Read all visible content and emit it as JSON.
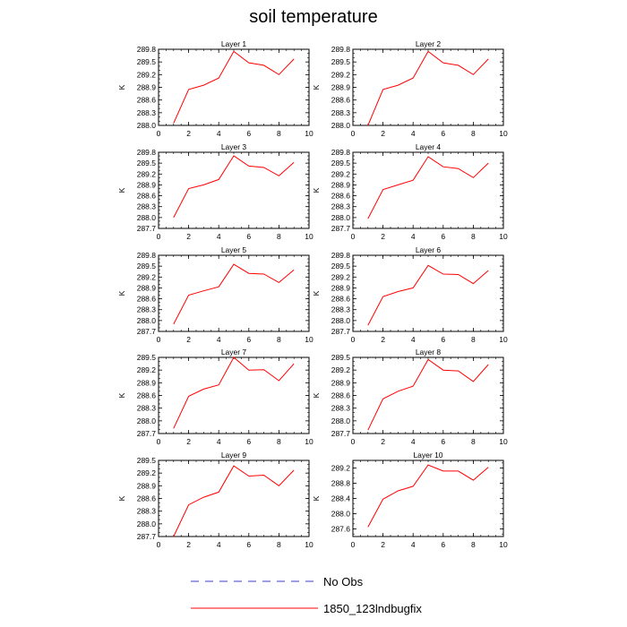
{
  "title": "soil temperature",
  "legend": {
    "placement": "bottom-center",
    "entries": [
      {
        "label": "No Obs",
        "color": "#3b3bd6",
        "style": "dashed"
      },
      {
        "label": "1850_123lndbugfix",
        "color": "#ff0000",
        "style": "solid"
      }
    ]
  },
  "chart_data": [
    {
      "type": "line",
      "title": "Layer 1",
      "ylabel": "K",
      "xlim": [
        0,
        10
      ],
      "xticks": [
        0,
        2,
        4,
        6,
        8,
        10
      ],
      "ylim": [
        288.0,
        289.8
      ],
      "yticks": [
        288.0,
        288.3,
        288.6,
        288.9,
        289.2,
        289.5,
        289.8
      ],
      "series": [
        {
          "color": "#ff0000",
          "x": [
            1,
            2,
            3,
            4,
            5,
            6,
            7,
            8,
            9
          ],
          "y": [
            288.05,
            288.85,
            288.95,
            289.12,
            289.75,
            289.48,
            289.42,
            289.2,
            289.57
          ]
        }
      ]
    },
    {
      "type": "line",
      "title": "Layer 2",
      "ylabel": "K",
      "xlim": [
        0,
        10
      ],
      "xticks": [
        0,
        2,
        4,
        6,
        8,
        10
      ],
      "ylim": [
        288.0,
        289.8
      ],
      "yticks": [
        288.0,
        288.3,
        288.6,
        288.9,
        289.2,
        289.5,
        289.8
      ],
      "series": [
        {
          "color": "#ff0000",
          "x": [
            1,
            2,
            3,
            4,
            5,
            6,
            7,
            8,
            9
          ],
          "y": [
            288.0,
            288.85,
            288.95,
            289.12,
            289.75,
            289.48,
            289.42,
            289.2,
            289.57
          ]
        }
      ]
    },
    {
      "type": "line",
      "title": "Layer 3",
      "ylabel": "K",
      "xlim": [
        0,
        10
      ],
      "xticks": [
        0,
        2,
        4,
        6,
        8,
        10
      ],
      "ylim": [
        287.7,
        289.8
      ],
      "yticks": [
        287.7,
        288.0,
        288.3,
        288.6,
        288.9,
        289.2,
        289.5,
        289.8
      ],
      "series": [
        {
          "color": "#ff0000",
          "x": [
            1,
            2,
            3,
            4,
            5,
            6,
            7,
            8,
            9
          ],
          "y": [
            288.0,
            288.8,
            288.9,
            289.05,
            289.7,
            289.42,
            289.38,
            289.15,
            289.52
          ]
        }
      ]
    },
    {
      "type": "line",
      "title": "Layer 4",
      "ylabel": "K",
      "xlim": [
        0,
        10
      ],
      "xticks": [
        0,
        2,
        4,
        6,
        8,
        10
      ],
      "ylim": [
        287.7,
        289.8
      ],
      "yticks": [
        287.7,
        288.0,
        288.3,
        288.6,
        288.9,
        289.2,
        289.5,
        289.8
      ],
      "series": [
        {
          "color": "#ff0000",
          "x": [
            1,
            2,
            3,
            4,
            5,
            6,
            7,
            8,
            9
          ],
          "y": [
            287.97,
            288.77,
            288.9,
            289.03,
            289.68,
            289.4,
            289.35,
            289.1,
            289.5
          ]
        }
      ]
    },
    {
      "type": "line",
      "title": "Layer 5",
      "ylabel": "K",
      "xlim": [
        0,
        10
      ],
      "xticks": [
        0,
        2,
        4,
        6,
        8,
        10
      ],
      "ylim": [
        287.7,
        289.8
      ],
      "yticks": [
        287.7,
        288.0,
        288.3,
        288.6,
        288.9,
        289.2,
        289.5,
        289.8
      ],
      "series": [
        {
          "color": "#ff0000",
          "x": [
            1,
            2,
            3,
            4,
            5,
            6,
            7,
            8,
            9
          ],
          "y": [
            287.9,
            288.7,
            288.82,
            288.93,
            289.55,
            289.3,
            289.28,
            289.05,
            289.4
          ]
        }
      ]
    },
    {
      "type": "line",
      "title": "Layer 6",
      "ylabel": "K",
      "xlim": [
        0,
        10
      ],
      "xticks": [
        0,
        2,
        4,
        6,
        8,
        10
      ],
      "ylim": [
        287.7,
        289.8
      ],
      "yticks": [
        287.7,
        288.0,
        288.3,
        288.6,
        288.9,
        289.2,
        289.5,
        289.8
      ],
      "series": [
        {
          "color": "#ff0000",
          "x": [
            1,
            2,
            3,
            4,
            5,
            6,
            7,
            8,
            9
          ],
          "y": [
            287.87,
            288.66,
            288.8,
            288.9,
            289.52,
            289.28,
            289.27,
            289.02,
            289.38
          ]
        }
      ]
    },
    {
      "type": "line",
      "title": "Layer 7",
      "ylabel": "K",
      "xlim": [
        0,
        10
      ],
      "xticks": [
        0,
        2,
        4,
        6,
        8,
        10
      ],
      "ylim": [
        287.7,
        289.5
      ],
      "yticks": [
        287.7,
        288.0,
        288.3,
        288.6,
        288.9,
        289.2,
        289.5
      ],
      "series": [
        {
          "color": "#ff0000",
          "x": [
            1,
            2,
            3,
            4,
            5,
            6,
            7,
            8,
            9
          ],
          "y": [
            287.82,
            288.58,
            288.75,
            288.85,
            289.5,
            289.2,
            289.21,
            288.95,
            289.35
          ]
        }
      ]
    },
    {
      "type": "line",
      "title": "Layer 8",
      "ylabel": "K",
      "xlim": [
        0,
        10
      ],
      "xticks": [
        0,
        2,
        4,
        6,
        8,
        10
      ],
      "ylim": [
        287.7,
        289.5
      ],
      "yticks": [
        287.7,
        288.0,
        288.3,
        288.6,
        288.9,
        289.2,
        289.5
      ],
      "series": [
        {
          "color": "#ff0000",
          "x": [
            1,
            2,
            3,
            4,
            5,
            6,
            7,
            8,
            9
          ],
          "y": [
            287.78,
            288.52,
            288.7,
            288.82,
            289.45,
            289.2,
            289.18,
            288.93,
            289.33
          ]
        }
      ]
    },
    {
      "type": "line",
      "title": "Layer 9",
      "ylabel": "K",
      "xlim": [
        0,
        10
      ],
      "xticks": [
        0,
        2,
        4,
        6,
        8,
        10
      ],
      "ylim": [
        287.7,
        289.5
      ],
      "yticks": [
        287.7,
        288.0,
        288.3,
        288.6,
        288.9,
        289.2,
        289.5
      ],
      "series": [
        {
          "color": "#ff0000",
          "x": [
            1,
            2,
            3,
            4,
            5,
            6,
            7,
            8,
            9
          ],
          "y": [
            287.7,
            288.45,
            288.63,
            288.75,
            289.37,
            289.13,
            289.15,
            288.9,
            289.27
          ]
        }
      ]
    },
    {
      "type": "line",
      "title": "Layer 10",
      "ylabel": "K",
      "xlim": [
        0,
        10
      ],
      "xticks": [
        0,
        2,
        4,
        6,
        8,
        10
      ],
      "ylim": [
        287.4,
        289.4
      ],
      "yticks": [
        287.6,
        288.0,
        288.4,
        288.8,
        289.2
      ],
      "series": [
        {
          "color": "#ff0000",
          "x": [
            1,
            2,
            3,
            4,
            5,
            6,
            7,
            8,
            9
          ],
          "y": [
            287.65,
            288.38,
            288.6,
            288.72,
            289.28,
            289.12,
            289.12,
            288.88,
            289.22
          ]
        }
      ]
    }
  ]
}
